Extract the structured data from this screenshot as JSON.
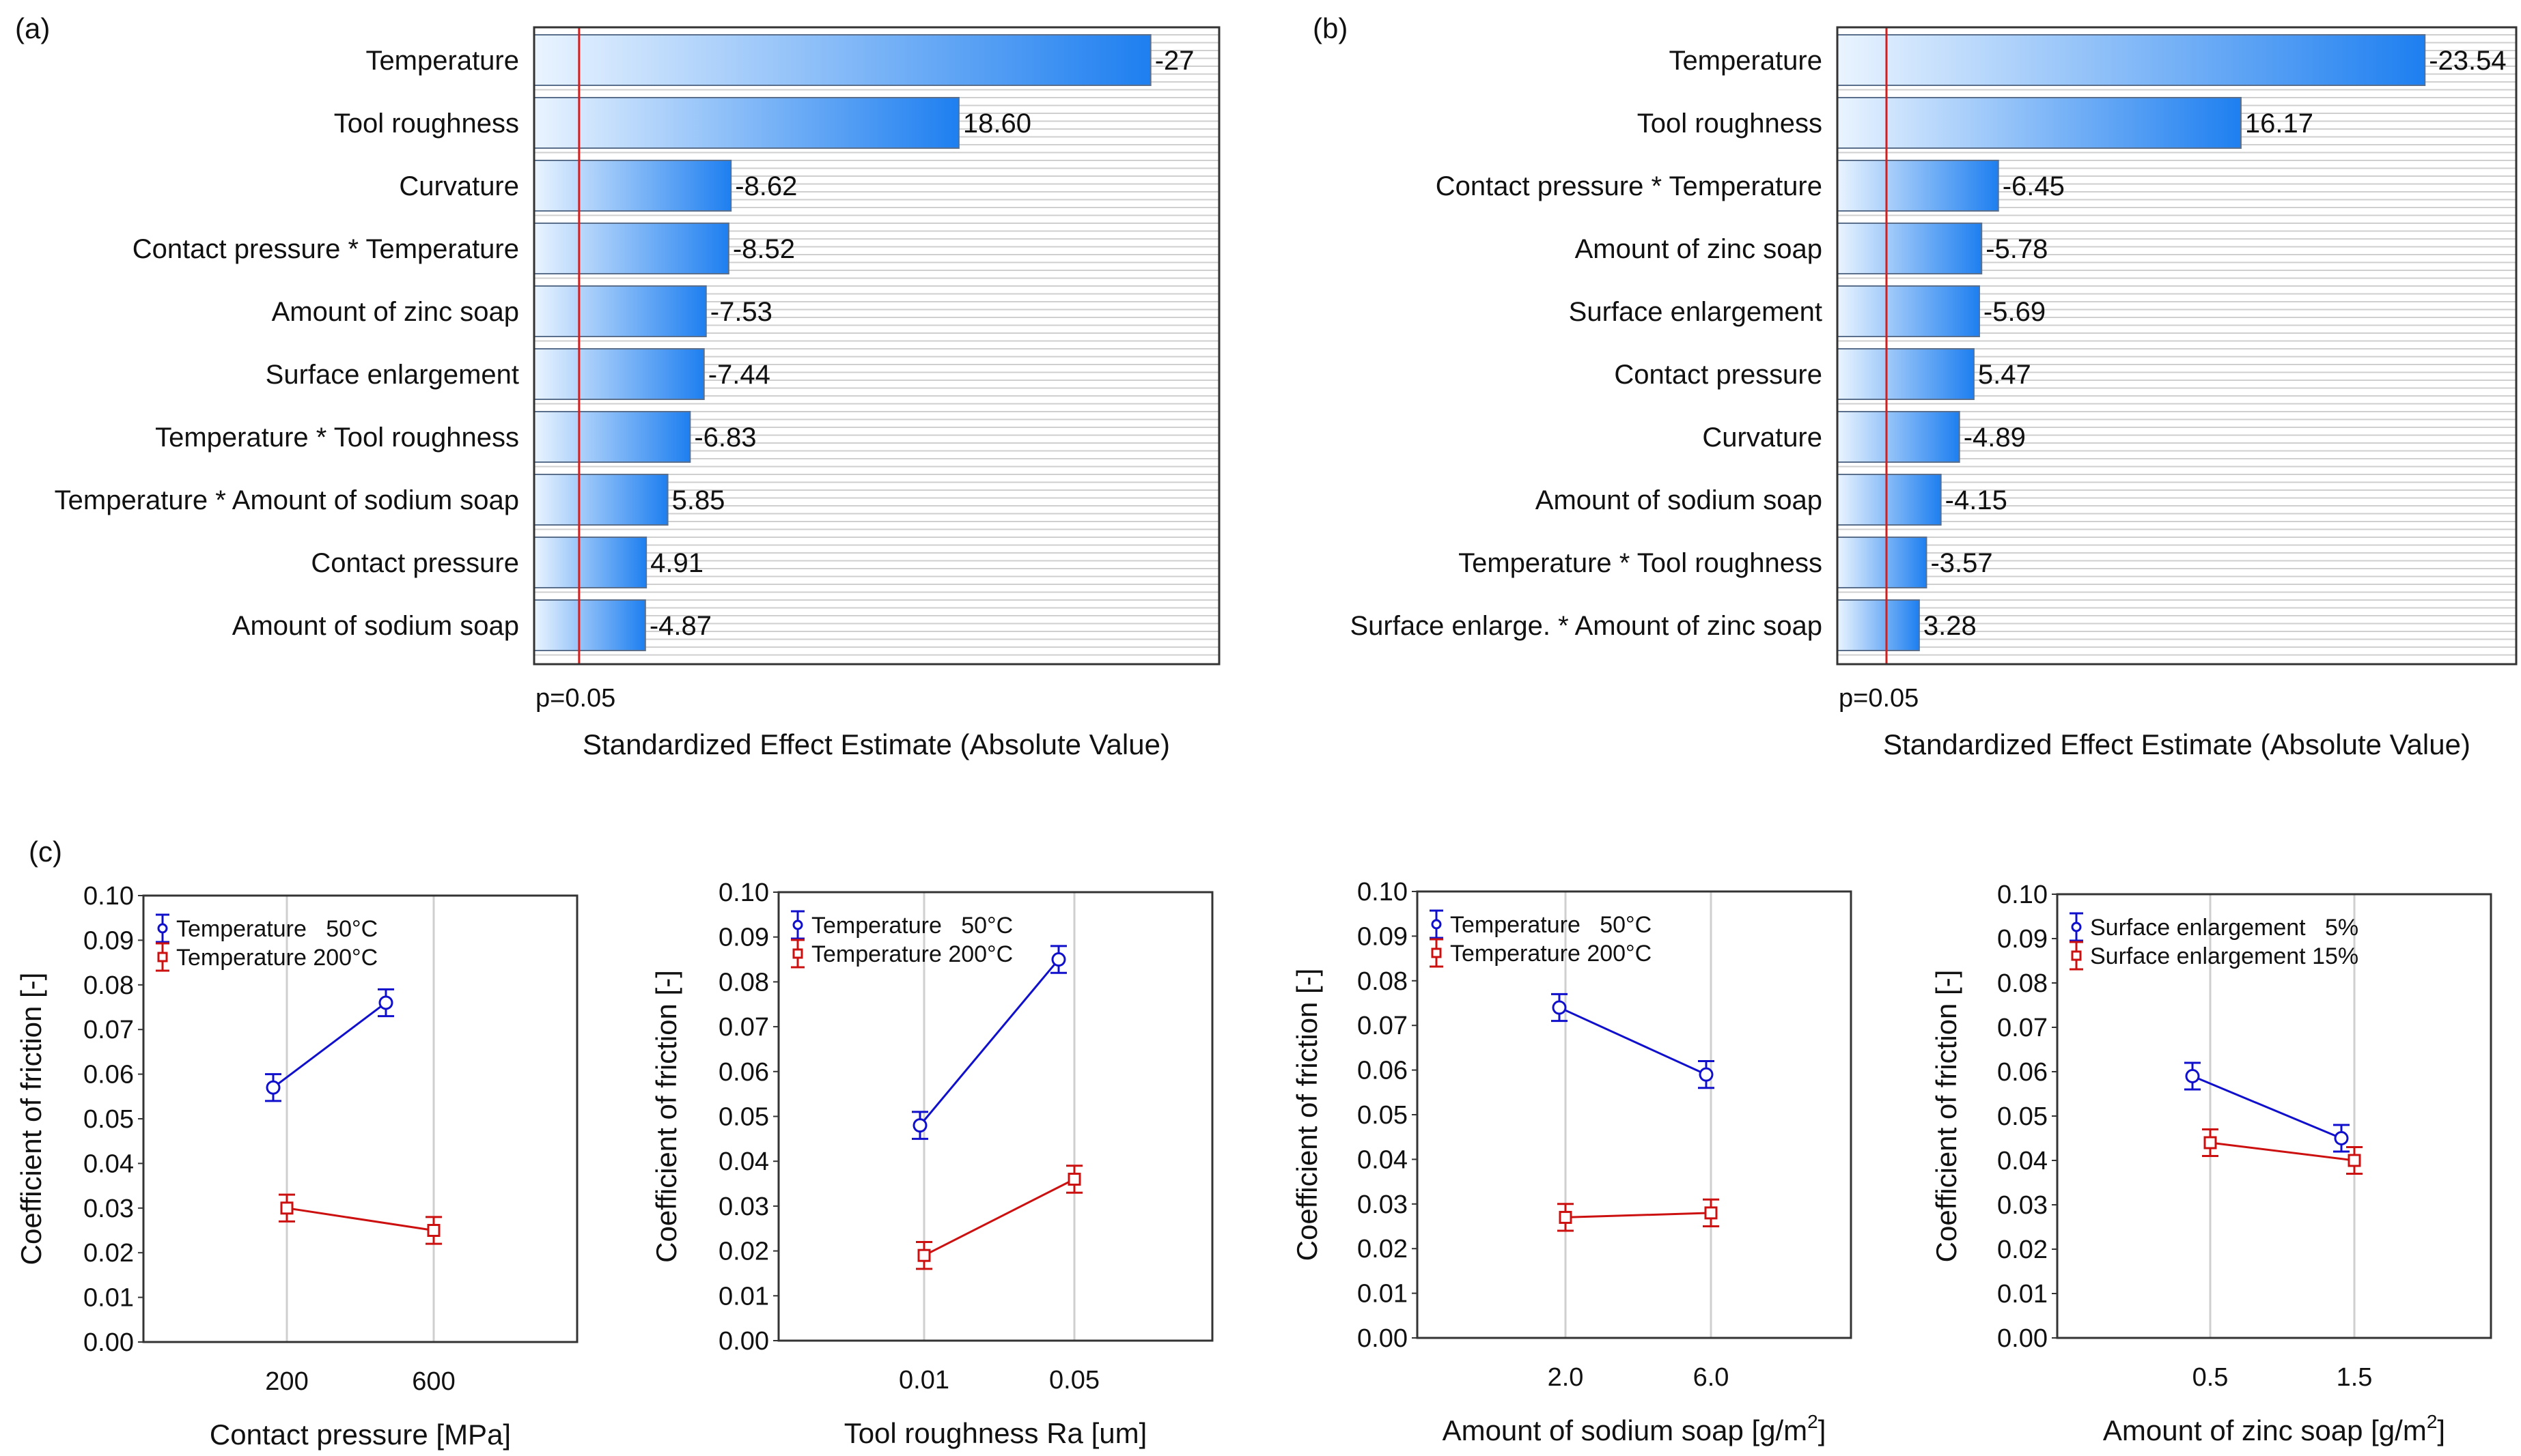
{
  "panel_labels": [
    "(a)",
    "(b)",
    "(c)"
  ],
  "colors": {
    "series1": "#1010cc",
    "series2": "#cc1010",
    "bar_dark": "#1e7ff0",
    "bar_light": "#eaf4ff",
    "threshold": "#d21f1f",
    "grid": "#cfcfcf"
  },
  "chart_data": [
    {
      "type": "bar",
      "orientation": "horizontal",
      "panel": "(a)",
      "categories": [
        "Temperature",
        "Tool roughness",
        "Curvature",
        "Contact pressure * Temperature",
        "Amount of zinc soap",
        "Surface enlargement",
        "Temperature * Tool roughness",
        "Temperature * Amount of sodium soap",
        "Contact pressure",
        "Amount of sodium soap"
      ],
      "values": [
        27,
        18.6,
        8.62,
        8.52,
        7.53,
        7.44,
        6.83,
        5.85,
        4.91,
        4.87
      ],
      "value_labels": [
        "-27",
        "18.60",
        "-8.62",
        "-8.52",
        "-7.53",
        "-7.44",
        "-6.83",
        "5.85",
        "4.91",
        "-4.87"
      ],
      "xlim": [
        0,
        30
      ],
      "threshold": 1.97,
      "threshold_label": "p=0.05",
      "xlabel": "Standardized Effect Estimate (Absolute Value)"
    },
    {
      "type": "bar",
      "orientation": "horizontal",
      "panel": "(b)",
      "categories": [
        "Temperature",
        "Tool roughness",
        "Contact pressure * Temperature",
        "Amount of zinc soap",
        "Surface enlargement",
        "Contact pressure",
        "Curvature",
        "Amount of sodium soap",
        "Temperature * Tool roughness",
        "Surface enlarge. * Amount of zinc soap"
      ],
      "values": [
        23.54,
        16.17,
        6.45,
        5.78,
        5.69,
        5.47,
        4.89,
        4.15,
        3.57,
        3.28
      ],
      "value_labels": [
        "-23.54",
        "16.17",
        "-6.45",
        "-5.78",
        "-5.69",
        "5.47",
        "-4.89",
        "-4.15",
        "-3.57",
        "3.28"
      ],
      "xlim": [
        0,
        27.2
      ],
      "threshold": 1.97,
      "threshold_label": "p=0.05",
      "xlabel": "Standardized Effect Estimate (Absolute Value)"
    },
    {
      "type": "line",
      "panel": "(c)-1",
      "ylabel": "Coefficient of friction [-]",
      "xlabel": "Contact pressure [MPa]",
      "xlabel_sup": "",
      "xlabel_tail": "",
      "categories": [
        "200",
        "600"
      ],
      "ylim": [
        0,
        0.1
      ],
      "yticks": [
        "0.00",
        "0.01",
        "0.02",
        "0.03",
        "0.04",
        "0.05",
        "0.06",
        "0.07",
        "0.08",
        "0.09",
        "0.10"
      ],
      "series": [
        {
          "name": "Temperature   50°C",
          "values": [
            0.057,
            0.076
          ],
          "err": [
            0.003,
            0.003
          ]
        },
        {
          "name": "Temperature 200°C",
          "values": [
            0.03,
            0.025
          ],
          "err": [
            0.003,
            0.003
          ]
        }
      ]
    },
    {
      "type": "line",
      "panel": "(c)-2",
      "ylabel": "Coefficient of friction [-]",
      "xlabel": "Tool roughness Ra [um]",
      "xlabel_sup": "",
      "xlabel_tail": "",
      "categories": [
        "0.01",
        "0.05"
      ],
      "ylim": [
        0,
        0.1
      ],
      "yticks": [
        "0.00",
        "0.01",
        "0.02",
        "0.03",
        "0.04",
        "0.05",
        "0.06",
        "0.07",
        "0.08",
        "0.09",
        "0.10"
      ],
      "series": [
        {
          "name": "Temperature   50°C",
          "values": [
            0.048,
            0.085
          ],
          "err": [
            0.003,
            0.003
          ]
        },
        {
          "name": "Temperature 200°C",
          "values": [
            0.019,
            0.036
          ],
          "err": [
            0.003,
            0.003
          ]
        }
      ]
    },
    {
      "type": "line",
      "panel": "(c)-3",
      "ylabel": "Coefficient of friction [-]",
      "xlabel": "Amount of sodium soap [g/m",
      "xlabel_sup": "2",
      "xlabel_tail": "]",
      "categories": [
        "2.0",
        "6.0"
      ],
      "ylim": [
        0,
        0.1
      ],
      "yticks": [
        "0.00",
        "0.01",
        "0.02",
        "0.03",
        "0.04",
        "0.05",
        "0.06",
        "0.07",
        "0.08",
        "0.09",
        "0.10"
      ],
      "series": [
        {
          "name": "Temperature   50°C",
          "values": [
            0.074,
            0.059
          ],
          "err": [
            0.003,
            0.003
          ]
        },
        {
          "name": "Temperature 200°C",
          "values": [
            0.027,
            0.028
          ],
          "err": [
            0.003,
            0.003
          ]
        }
      ]
    },
    {
      "type": "line",
      "panel": "(c)-4",
      "ylabel": "Coefficient of friction [-]",
      "xlabel": "Amount of zinc soap [g/m",
      "xlabel_sup": "2",
      "xlabel_tail": "]",
      "categories": [
        "0.5",
        "1.5"
      ],
      "ylim": [
        0,
        0.1
      ],
      "yticks": [
        "0.00",
        "0.01",
        "0.02",
        "0.03",
        "0.04",
        "0.05",
        "0.06",
        "0.07",
        "0.08",
        "0.09",
        "0.10"
      ],
      "series": [
        {
          "name": "Surface enlargement   5%",
          "values": [
            0.059,
            0.045
          ],
          "err": [
            0.003,
            0.003
          ]
        },
        {
          "name": "Surface enlargement 15%",
          "values": [
            0.044,
            0.04
          ],
          "err": [
            0.003,
            0.003
          ]
        }
      ]
    }
  ]
}
